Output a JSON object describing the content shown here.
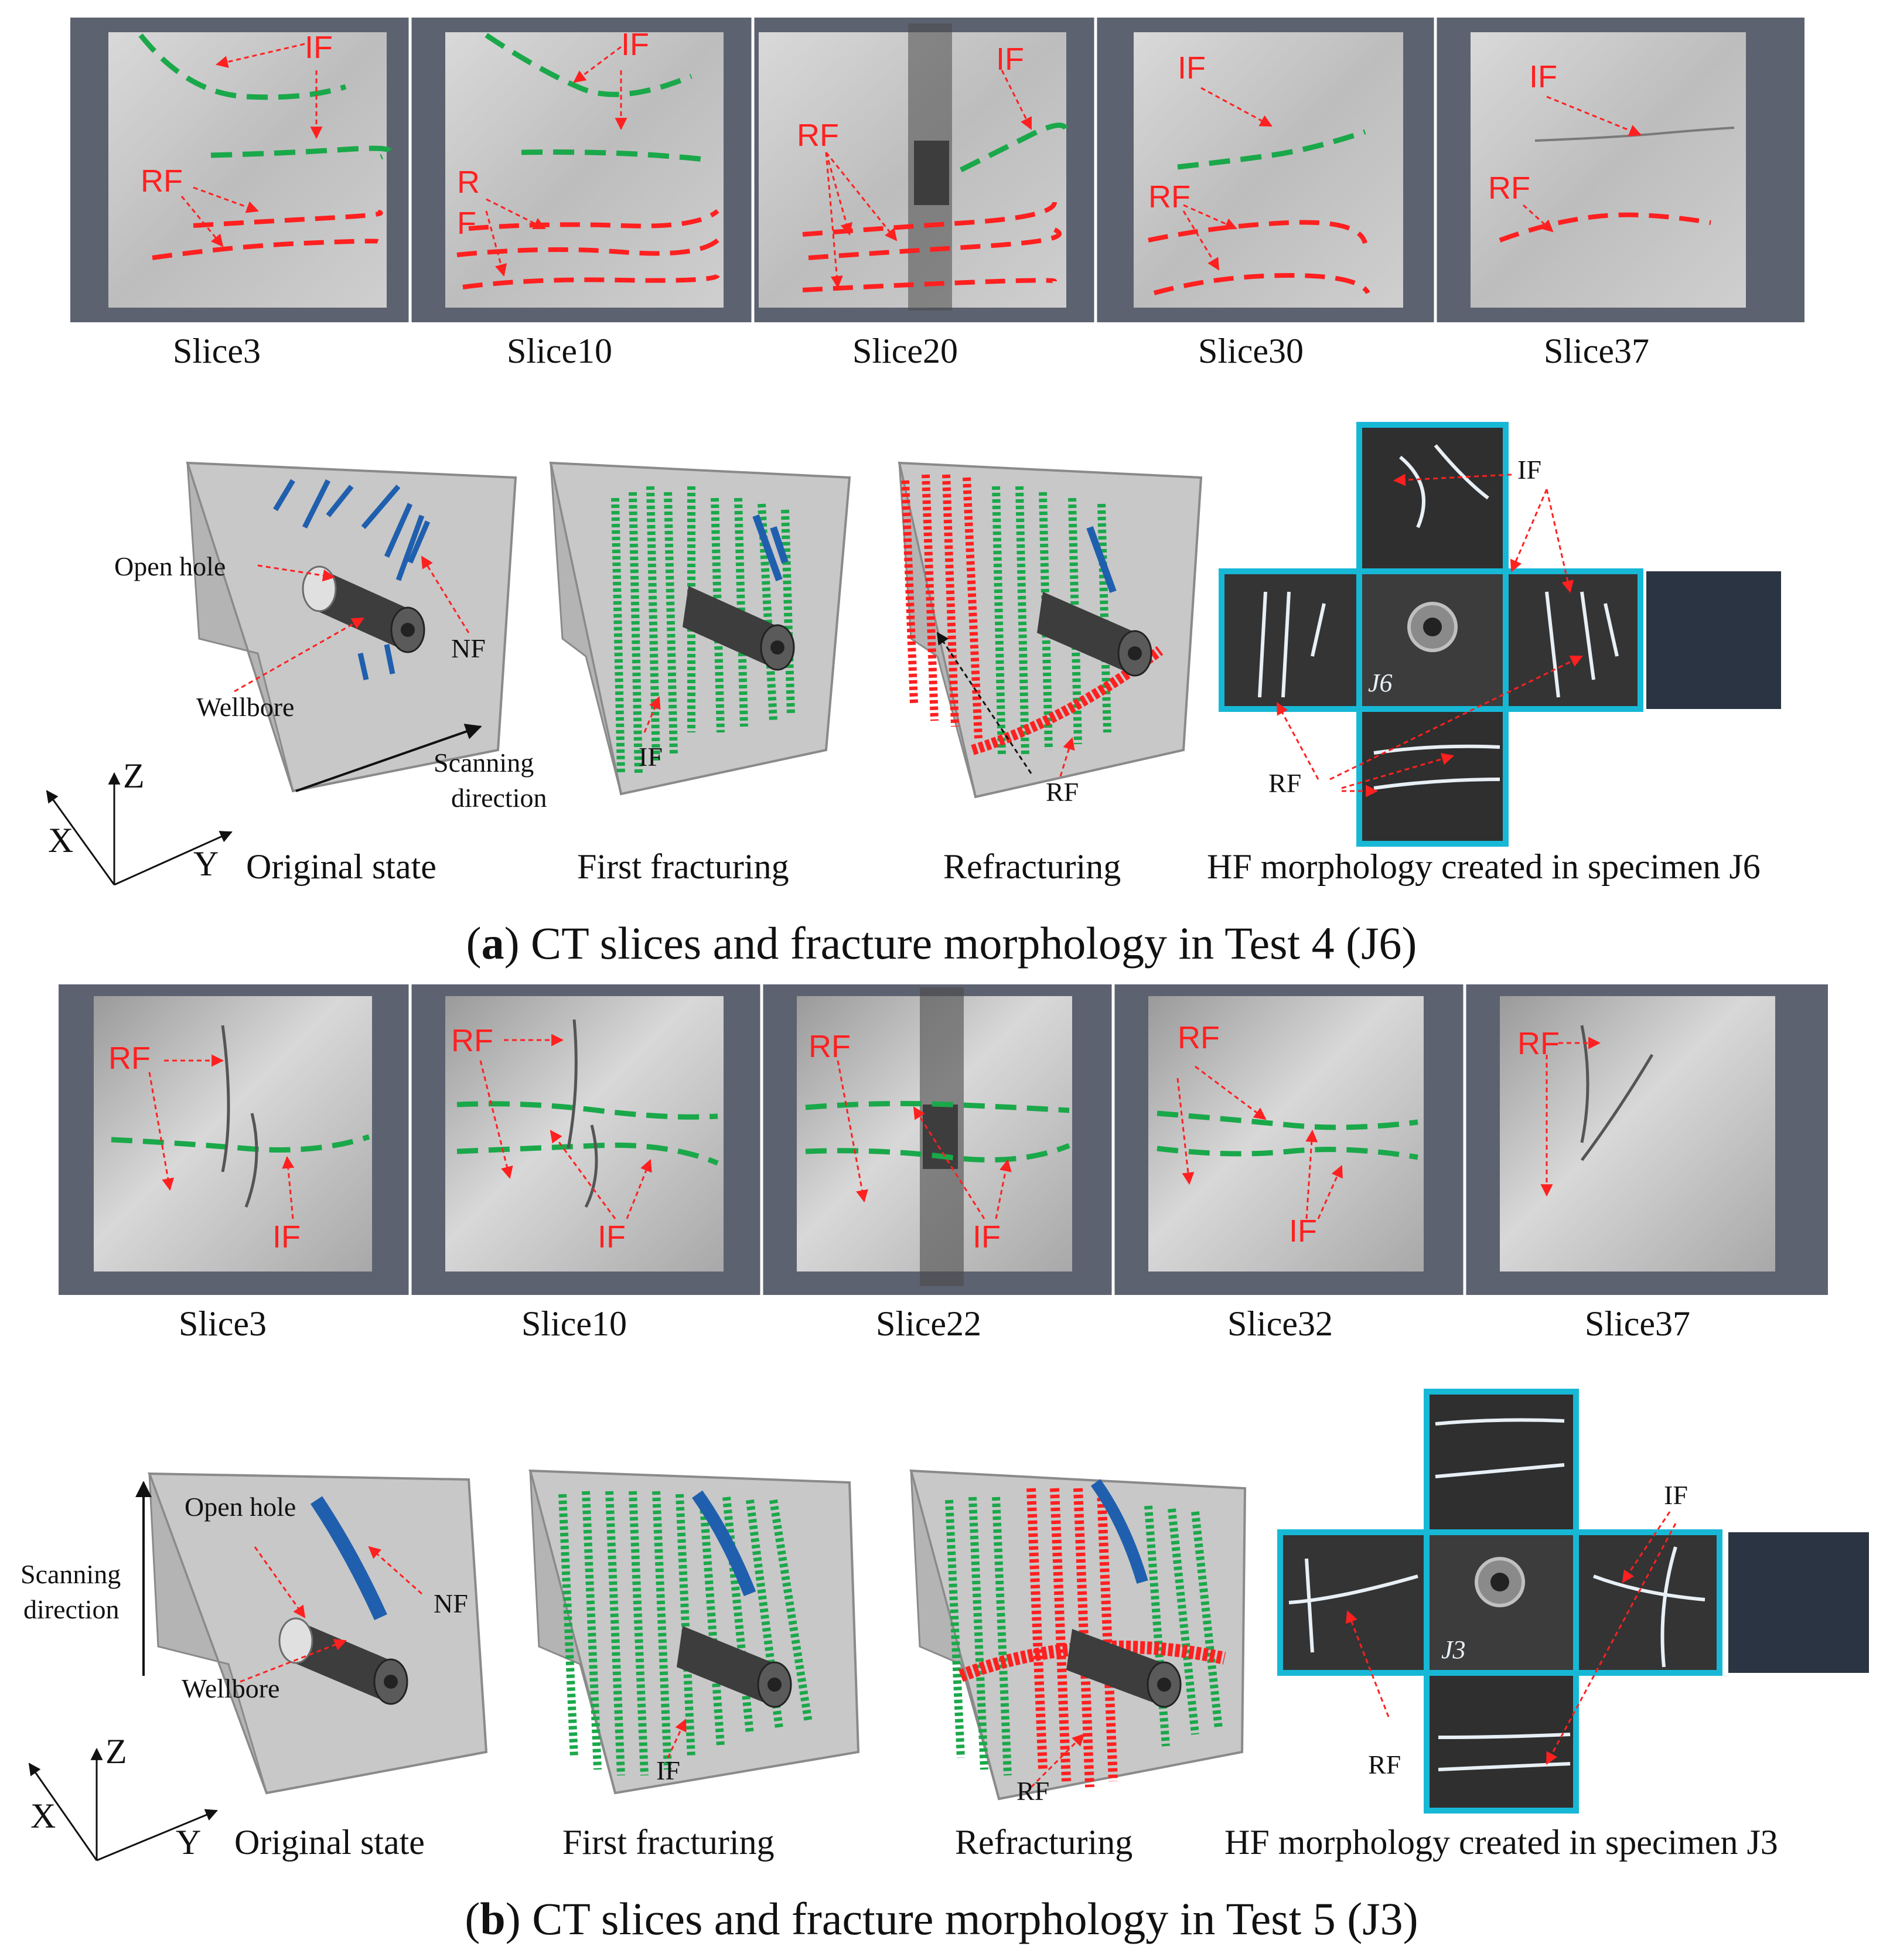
{
  "colors": {
    "slice_background": "#5c6270",
    "initial_fracture_green": "#1aa84a",
    "refracture_red": "#ff2020",
    "natural_fracture_blue": "#1f5fae",
    "specimen_frame_cyan": "#17b8d6"
  },
  "icons": [
    "cube-model-icon",
    "wellbore-icon",
    "axis-triad-icon"
  ],
  "panel_a": {
    "slices": [
      {
        "label": "Slice3",
        "annotations": [
          "IF",
          "RF"
        ]
      },
      {
        "label": "Slice10",
        "annotations": [
          "IF",
          "R",
          "F"
        ]
      },
      {
        "label": "Slice20",
        "annotations": [
          "IF",
          "RF"
        ]
      },
      {
        "label": "Slice30",
        "annotations": [
          "IF",
          "RF"
        ]
      },
      {
        "label": "Slice37",
        "annotations": [
          "IF",
          "RF"
        ]
      }
    ],
    "models": [
      {
        "label": "Original state",
        "annotations": [
          "Open hole",
          "Wellbore",
          "NF",
          "Scanning",
          "direction"
        ]
      },
      {
        "label": "First fracturing",
        "annotations": [
          "IF"
        ]
      },
      {
        "label": "Refracturing",
        "annotations": [
          "RF"
        ]
      }
    ],
    "axes": [
      "X",
      "Y",
      "Z"
    ],
    "specimen": {
      "label": "HF morphology created in specimen J6",
      "annotations": [
        "IF",
        "RF"
      ],
      "marking": "J6"
    },
    "caption_letter": "a",
    "caption_text": "CT slices and fracture morphology in Test 4 (J6)"
  },
  "panel_b": {
    "slices": [
      {
        "label": "Slice3",
        "annotations": [
          "RF",
          "IF"
        ]
      },
      {
        "label": "Slice10",
        "annotations": [
          "RF",
          "IF"
        ]
      },
      {
        "label": "Slice22",
        "annotations": [
          "RF",
          "IF"
        ]
      },
      {
        "label": "Slice32",
        "annotations": [
          "RF",
          "IF"
        ]
      },
      {
        "label": "Slice37",
        "annotations": [
          "RF"
        ]
      }
    ],
    "models": [
      {
        "label": "Original state",
        "annotations": [
          "Open hole",
          "Wellbore",
          "NF",
          "Scanning",
          "direction"
        ]
      },
      {
        "label": "First fracturing",
        "annotations": [
          "IF"
        ]
      },
      {
        "label": "Refracturing",
        "annotations": [
          "RF"
        ]
      }
    ],
    "axes": [
      "X",
      "Y",
      "Z"
    ],
    "specimen": {
      "label": "HF morphology created in specimen J3",
      "annotations": [
        "IF",
        "RF"
      ],
      "marking": "J3"
    },
    "caption_letter": "b",
    "caption_text": "CT slices and fracture morphology in Test 5 (J3)"
  }
}
